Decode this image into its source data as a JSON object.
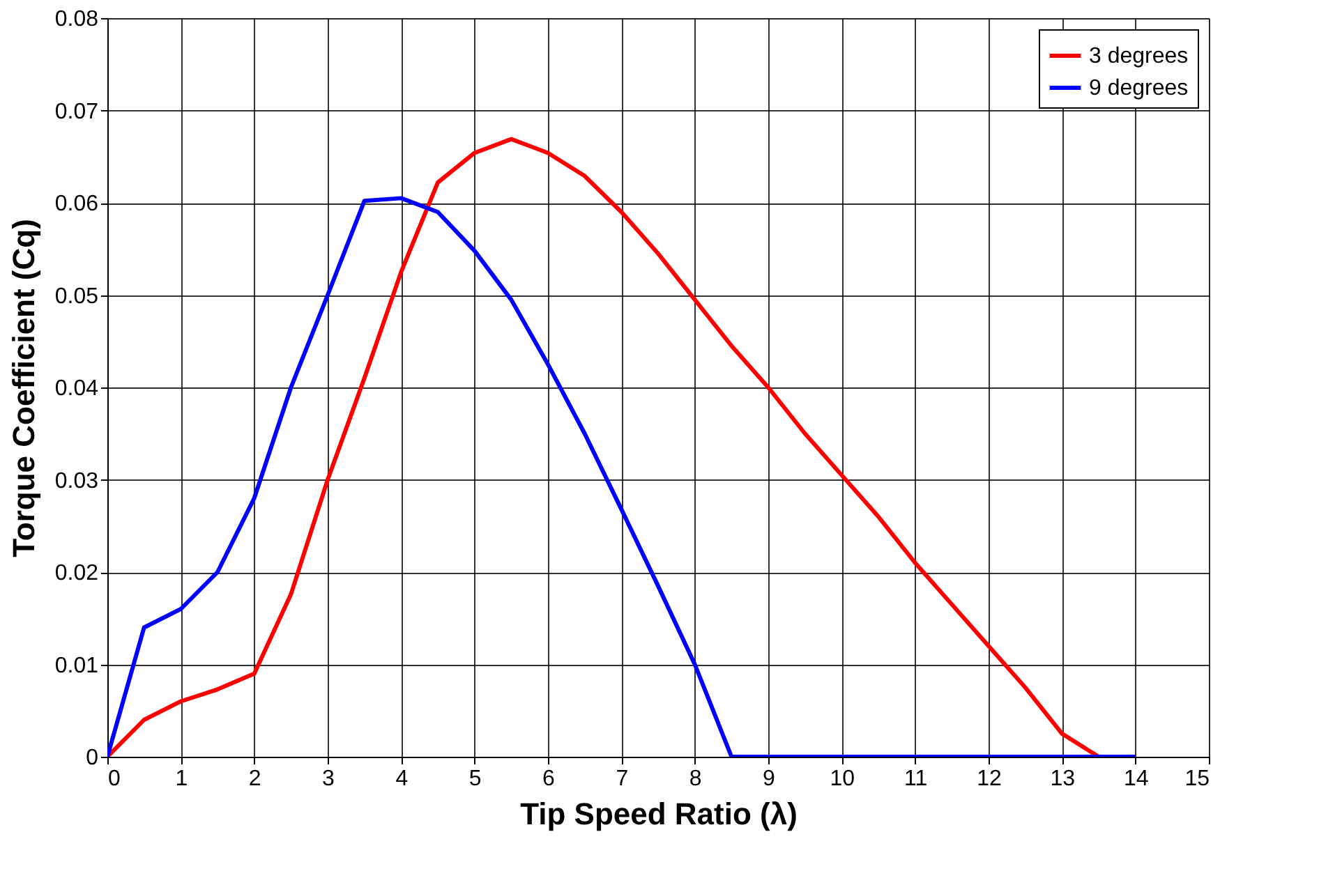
{
  "chart_data": {
    "type": "line",
    "xlabel": "Tip Speed Ratio (λ)",
    "ylabel": "Torque Coefficient (Cq)",
    "x": [
      0,
      0.5,
      1,
      1.5,
      2,
      2.5,
      3,
      3.5,
      4,
      4.5,
      5,
      5.5,
      6,
      6.5,
      7,
      7.5,
      8,
      8.5,
      9,
      9.5,
      10,
      10.5,
      11,
      11.5,
      12,
      12.5,
      13,
      13.5,
      14
    ],
    "series": [
      {
        "name": "3 degrees",
        "color": "#ff0000",
        "values": [
          0,
          0.004,
          0.006,
          0.0073,
          0.009,
          0.0176,
          0.03,
          0.041,
          0.0525,
          0.0622,
          0.0654,
          0.0669,
          0.0654,
          0.0629,
          0.059,
          0.0545,
          0.0495,
          0.0445,
          0.04,
          0.035,
          0.0305,
          0.026,
          0.021,
          0.0165,
          0.012,
          0.0075,
          0.0025,
          0,
          0
        ]
      },
      {
        "name": "9 degrees",
        "color": "#0000ff",
        "values": [
          0,
          0.014,
          0.016,
          0.02,
          0.028,
          0.04,
          0.05,
          0.0602,
          0.0605,
          0.059,
          0.0548,
          0.0495,
          0.0425,
          0.035,
          0.0268,
          0.0185,
          0.01,
          0,
          0,
          0,
          0,
          0,
          0,
          0,
          0,
          0,
          0,
          0,
          0
        ]
      }
    ],
    "xlim": [
      0,
      15
    ],
    "xticks": [
      0,
      1,
      2,
      3,
      4,
      5,
      6,
      7,
      8,
      9,
      10,
      11,
      12,
      13,
      14,
      15
    ],
    "ylim": [
      0,
      0.08
    ],
    "yticks": [
      0,
      0.01,
      0.02,
      0.03,
      0.04,
      0.05,
      0.06,
      0.07,
      0.08
    ],
    "grid": true,
    "legend": "top right",
    "marker": "none",
    "line_style": "solid"
  }
}
